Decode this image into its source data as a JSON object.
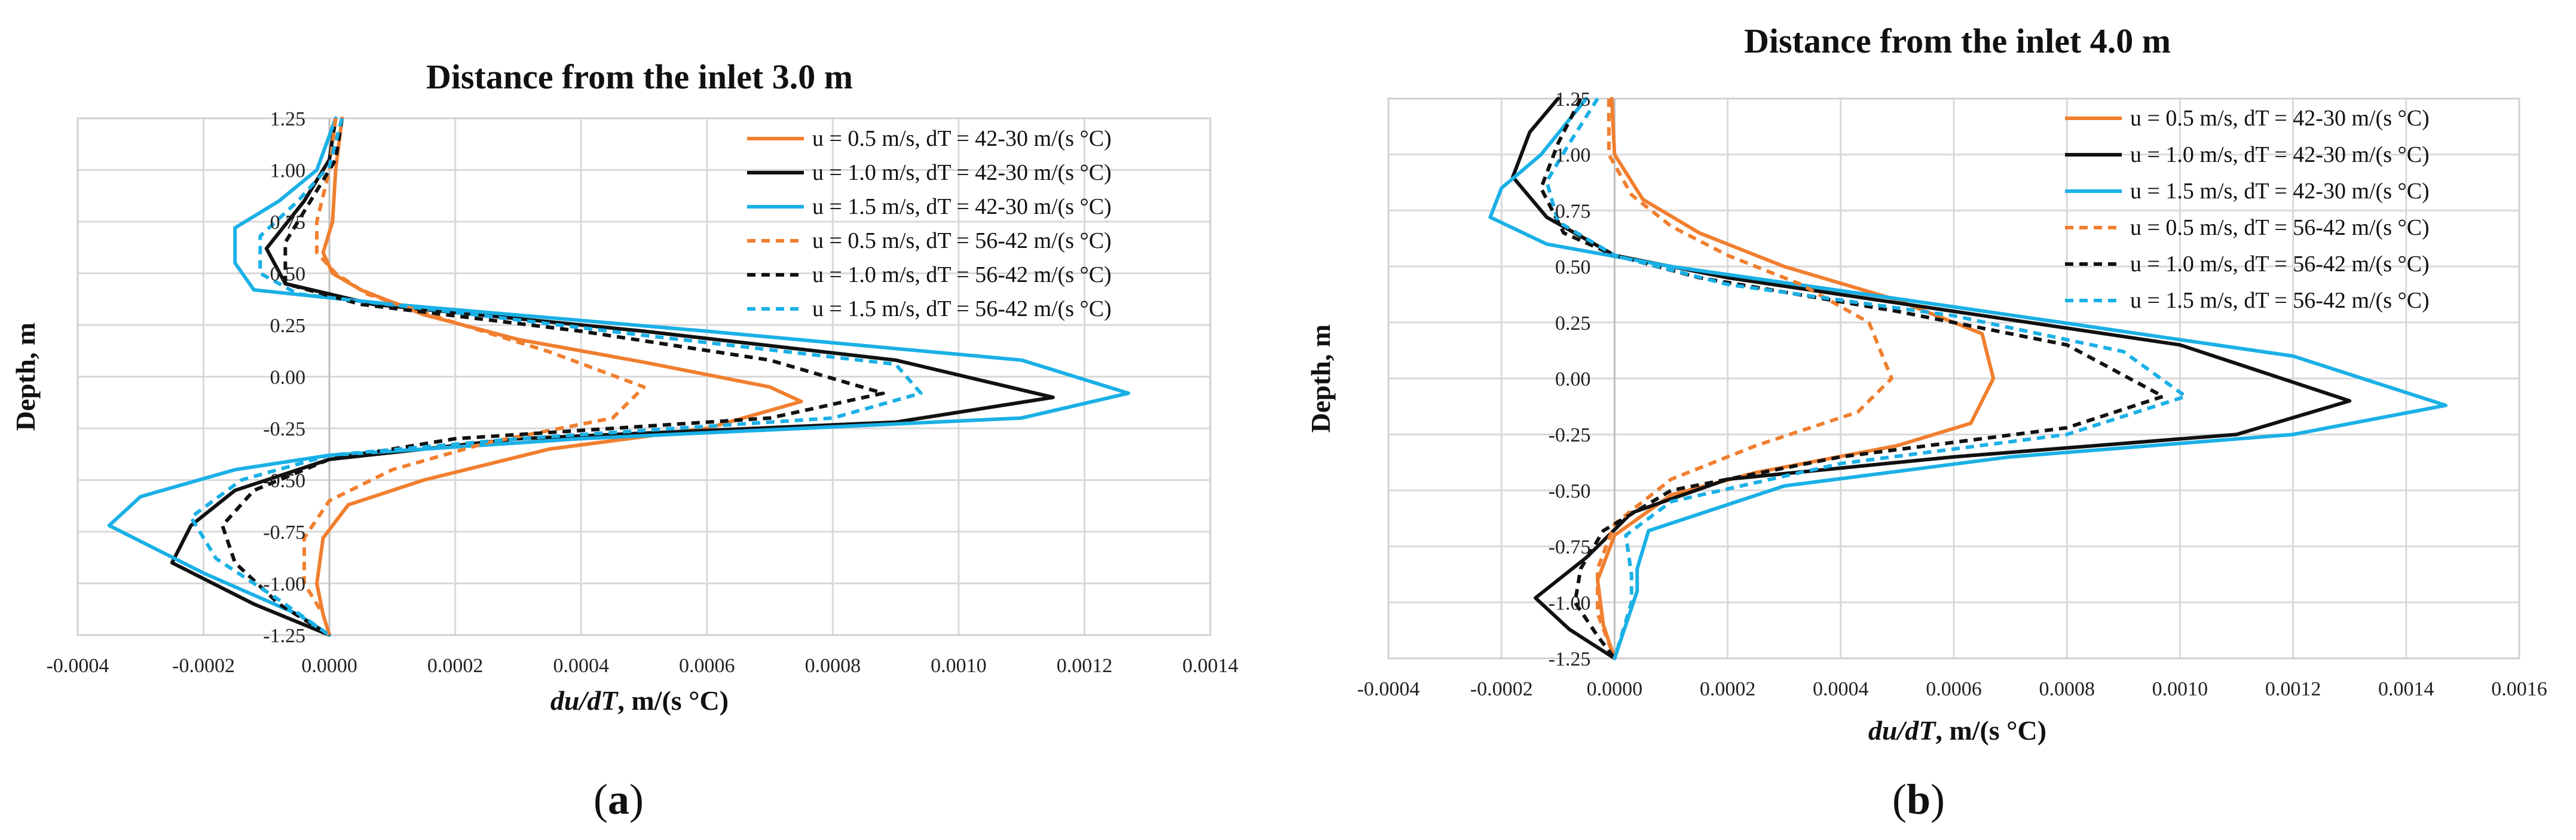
{
  "charts": [
    {
      "id": "a",
      "type": "line",
      "panel_label": "(a)",
      "title": "Distance from the inlet 3.0 m",
      "xlabel_italic": "du/dT",
      "xlabel_rest": ", m/(s °C)",
      "ylabel": "Depth, m",
      "xlim": [
        -0.0004,
        0.0014
      ],
      "ylim": [
        -1.25,
        1.25
      ],
      "x_ticks": [
        "-0.0004",
        "-0.0002",
        "0.0000",
        "0.0002",
        "0.0004",
        "0.0006",
        "0.0008",
        "0.0010",
        "0.0012",
        "0.0014"
      ],
      "y_ticks": [
        "1.25",
        "1.00",
        "0.75",
        "0.50",
        "0.25",
        "0.00",
        "-0.25",
        "-0.50",
        "-0.75",
        "-1.00",
        "-1.25"
      ],
      "legend": "top-right",
      "series": [
        {
          "name": "u = 0.5 m/s, dT = 42-30 m/(s °C)",
          "color": "#f07f2f",
          "dash": false,
          "points": [
            [
              2e-05,
              1.25
            ],
            [
              1e-05,
              1.0
            ],
            [
              5e-06,
              0.75
            ],
            [
              -1e-05,
              0.6
            ],
            [
              5e-06,
              0.5
            ],
            [
              5e-05,
              0.42
            ],
            [
              0.00015,
              0.3
            ],
            [
              0.0003,
              0.18
            ],
            [
              0.0005,
              0.07
            ],
            [
              0.0007,
              -0.05
            ],
            [
              0.00075,
              -0.12
            ],
            [
              0.0006,
              -0.25
            ],
            [
              0.00035,
              -0.35
            ],
            [
              0.00015,
              -0.5
            ],
            [
              3e-05,
              -0.62
            ],
            [
              -1e-05,
              -0.78
            ],
            [
              -2e-05,
              -1.0
            ],
            [
              -1e-05,
              -1.15
            ],
            [
              0.0,
              -1.25
            ]
          ]
        },
        {
          "name": "u = 1.0 m/s, dT = 42-30 m/(s °C)",
          "color": "#111111",
          "dash": false,
          "points": [
            [
              1e-05,
              1.25
            ],
            [
              0.0,
              1.05
            ],
            [
              -4e-05,
              0.85
            ],
            [
              -0.0001,
              0.62
            ],
            [
              -7e-05,
              0.45
            ],
            [
              7e-05,
              0.35
            ],
            [
              0.0005,
              0.22
            ],
            [
              0.0009,
              0.08
            ],
            [
              0.00115,
              -0.1
            ],
            [
              0.0009,
              -0.22
            ],
            [
              0.0003,
              -0.3
            ],
            [
              0.0,
              -0.4
            ],
            [
              -0.00015,
              -0.55
            ],
            [
              -0.00022,
              -0.72
            ],
            [
              -0.00025,
              -0.9
            ],
            [
              -0.00012,
              -1.1
            ],
            [
              0.0,
              -1.25
            ]
          ]
        },
        {
          "name": "u = 1.5 m/s, dT = 42-30 m/(s °C)",
          "color": "#1ab0e6",
          "dash": false,
          "points": [
            [
              1e-05,
              1.25
            ],
            [
              -2e-05,
              1.0
            ],
            [
              -8e-05,
              0.85
            ],
            [
              -0.00015,
              0.72
            ],
            [
              -0.00015,
              0.55
            ],
            [
              -0.00012,
              0.42
            ],
            [
              0.0001,
              0.35
            ],
            [
              0.0006,
              0.22
            ],
            [
              0.0011,
              0.08
            ],
            [
              0.00127,
              -0.08
            ],
            [
              0.0011,
              -0.2
            ],
            [
              0.0004,
              -0.3
            ],
            [
              0.0,
              -0.38
            ],
            [
              -0.00015,
              -0.45
            ],
            [
              -0.0003,
              -0.58
            ],
            [
              -0.00035,
              -0.72
            ],
            [
              -0.0002,
              -0.95
            ],
            [
              -5e-05,
              -1.15
            ],
            [
              0.0,
              -1.25
            ]
          ]
        },
        {
          "name": "u = 0.5 m/s, dT = 56-42 m/(s °C)",
          "color": "#f07f2f",
          "dash": true,
          "points": [
            [
              1e-05,
              1.25
            ],
            [
              0.0,
              1.0
            ],
            [
              -2e-05,
              0.75
            ],
            [
              -2e-05,
              0.6
            ],
            [
              1e-05,
              0.5
            ],
            [
              6e-05,
              0.4
            ],
            [
              0.00018,
              0.28
            ],
            [
              0.00035,
              0.12
            ],
            [
              0.0005,
              -0.05
            ],
            [
              0.00045,
              -0.2
            ],
            [
              0.00025,
              -0.32
            ],
            [
              0.0001,
              -0.45
            ],
            [
              0.0,
              -0.6
            ],
            [
              -4e-05,
              -0.78
            ],
            [
              -4e-05,
              -1.0
            ],
            [
              -1e-05,
              -1.15
            ],
            [
              0.0,
              -1.25
            ]
          ]
        },
        {
          "name": "u = 1.0 m/s, dT = 56-42 m/(s °C)",
          "color": "#111111",
          "dash": true,
          "points": [
            [
              2e-05,
              1.25
            ],
            [
              1e-05,
              1.05
            ],
            [
              -3e-05,
              0.85
            ],
            [
              -7e-05,
              0.65
            ],
            [
              -7e-05,
              0.45
            ],
            [
              5e-05,
              0.35
            ],
            [
              0.0004,
              0.22
            ],
            [
              0.0007,
              0.08
            ],
            [
              0.00088,
              -0.08
            ],
            [
              0.0007,
              -0.2
            ],
            [
              0.0002,
              -0.3
            ],
            [
              0.0,
              -0.4
            ],
            [
              -0.00012,
              -0.55
            ],
            [
              -0.00017,
              -0.72
            ],
            [
              -0.00015,
              -0.9
            ],
            [
              -8e-05,
              -1.1
            ],
            [
              0.0,
              -1.25
            ]
          ]
        },
        {
          "name": "u = 1.5 m/s, dT = 56-42 m/(s °C)",
          "color": "#1ab0e6",
          "dash": true,
          "points": [
            [
              2e-05,
              1.25
            ],
            [
              0.0,
              1.02
            ],
            [
              -5e-05,
              0.85
            ],
            [
              -0.00011,
              0.68
            ],
            [
              -0.00011,
              0.5
            ],
            [
              -5e-05,
              0.4
            ],
            [
              0.00015,
              0.33
            ],
            [
              0.0005,
              0.2
            ],
            [
              0.0009,
              0.06
            ],
            [
              0.00094,
              -0.08
            ],
            [
              0.0008,
              -0.2
            ],
            [
              0.0003,
              -0.3
            ],
            [
              0.0,
              -0.38
            ],
            [
              -0.00014,
              -0.5
            ],
            [
              -0.00022,
              -0.68
            ],
            [
              -0.00018,
              -0.88
            ],
            [
              -8e-05,
              -1.08
            ],
            [
              0.0,
              -1.25
            ]
          ]
        }
      ]
    },
    {
      "id": "b",
      "type": "line",
      "panel_label": "(b)",
      "title": "Distance from the inlet 4.0 m",
      "xlabel_italic": "du/dT",
      "xlabel_rest": ", m/(s °C)",
      "ylabel": "Depth, m",
      "xlim": [
        -0.0004,
        0.0016
      ],
      "ylim": [
        -1.25,
        1.25
      ],
      "x_ticks": [
        "-0.0004",
        "-0.0002",
        "0.0000",
        "0.0002",
        "0.0004",
        "0.0006",
        "0.0008",
        "0.0010",
        "0.0012",
        "0.0014",
        "0.0016"
      ],
      "y_ticks": [
        "1.25",
        "1.00",
        "0.75",
        "0.50",
        "0.25",
        "0.00",
        "-0.25",
        "-0.50",
        "-0.75",
        "-1.00",
        "-1.25"
      ],
      "legend": "top-right",
      "series": [
        {
          "name": "u = 0.5 m/s, dT = 42-30 m/(s °C)",
          "color": "#f07f2f",
          "dash": false,
          "points": [
            [
              -5e-06,
              1.25
            ],
            [
              0.0,
              1.0
            ],
            [
              5e-05,
              0.8
            ],
            [
              0.00015,
              0.65
            ],
            [
              0.0003,
              0.5
            ],
            [
              0.0005,
              0.35
            ],
            [
              0.00065,
              0.2
            ],
            [
              0.00067,
              0.0
            ],
            [
              0.00063,
              -0.2
            ],
            [
              0.0005,
              -0.3
            ],
            [
              0.00025,
              -0.42
            ],
            [
              0.0001,
              -0.52
            ],
            [
              0.0,
              -0.7
            ],
            [
              -3e-05,
              -0.9
            ],
            [
              -2e-05,
              -1.1
            ],
            [
              0.0,
              -1.25
            ]
          ]
        },
        {
          "name": "u = 1.0 m/s, dT = 42-30 m/(s °C)",
          "color": "#111111",
          "dash": false,
          "points": [
            [
              -0.0001,
              1.25
            ],
            [
              -0.00015,
              1.1
            ],
            [
              -0.00018,
              0.9
            ],
            [
              -0.00012,
              0.72
            ],
            [
              0.0,
              0.55
            ],
            [
              0.0002,
              0.45
            ],
            [
              0.0006,
              0.3
            ],
            [
              0.001,
              0.15
            ],
            [
              0.0013,
              -0.1
            ],
            [
              0.0011,
              -0.25
            ],
            [
              0.0006,
              -0.35
            ],
            [
              0.0002,
              -0.45
            ],
            [
              3e-05,
              -0.6
            ],
            [
              -5e-05,
              -0.8
            ],
            [
              -0.00014,
              -0.98
            ],
            [
              -8e-05,
              -1.12
            ],
            [
              0.0,
              -1.25
            ]
          ]
        },
        {
          "name": "u = 1.5 m/s, dT = 42-30 m/(s °C)",
          "color": "#1ab0e6",
          "dash": false,
          "points": [
            [
              -5e-05,
              1.25
            ],
            [
              -0.00013,
              1.0
            ],
            [
              -0.0002,
              0.85
            ],
            [
              -0.00022,
              0.72
            ],
            [
              -0.00012,
              0.6
            ],
            [
              0.0001,
              0.5
            ],
            [
              0.0006,
              0.32
            ],
            [
              0.0012,
              0.1
            ],
            [
              0.00147,
              -0.12
            ],
            [
              0.0012,
              -0.25
            ],
            [
              0.0007,
              -0.35
            ],
            [
              0.0003,
              -0.48
            ],
            [
              6e-05,
              -0.68
            ],
            [
              4e-05,
              -0.85
            ],
            [
              4e-05,
              -0.95
            ],
            [
              0.0,
              -1.25
            ]
          ]
        },
        {
          "name": "u = 0.5 m/s, dT = 56-42 m/(s °C)",
          "color": "#f07f2f",
          "dash": true,
          "points": [
            [
              -1e-05,
              1.25
            ],
            [
              -1e-05,
              1.0
            ],
            [
              3e-05,
              0.82
            ],
            [
              0.0001,
              0.68
            ],
            [
              0.0002,
              0.55
            ],
            [
              0.00033,
              0.42
            ],
            [
              0.00045,
              0.25
            ],
            [
              0.00049,
              0.0
            ],
            [
              0.00043,
              -0.15
            ],
            [
              0.00025,
              -0.3
            ],
            [
              0.0001,
              -0.45
            ],
            [
              0.0,
              -0.65
            ],
            [
              -3e-05,
              -0.85
            ],
            [
              -3e-05,
              -1.05
            ],
            [
              0.0,
              -1.25
            ]
          ]
        },
        {
          "name": "u = 1.0 m/s, dT = 56-42 m/(s °C)",
          "color": "#111111",
          "dash": true,
          "points": [
            [
              -6e-05,
              1.25
            ],
            [
              -0.0001,
              1.05
            ],
            [
              -0.00013,
              0.85
            ],
            [
              -9e-05,
              0.65
            ],
            [
              0.0,
              0.55
            ],
            [
              0.00015,
              0.45
            ],
            [
              0.0005,
              0.3
            ],
            [
              0.0008,
              0.15
            ],
            [
              0.00097,
              -0.08
            ],
            [
              0.0008,
              -0.22
            ],
            [
              0.0004,
              -0.35
            ],
            [
              0.0001,
              -0.5
            ],
            [
              -2e-05,
              -0.68
            ],
            [
              -6e-05,
              -0.85
            ],
            [
              -7e-05,
              -1.0
            ],
            [
              -3e-05,
              -1.15
            ],
            [
              0.0,
              -1.25
            ]
          ]
        },
        {
          "name": "u = 1.5 m/s, dT = 56-42 m/(s °C)",
          "color": "#1ab0e6",
          "dash": true,
          "points": [
            [
              -3e-05,
              1.25
            ],
            [
              -8e-05,
              1.05
            ],
            [
              -0.00012,
              0.88
            ],
            [
              -0.0001,
              0.7
            ],
            [
              0.0,
              0.55
            ],
            [
              0.0002,
              0.42
            ],
            [
              0.0006,
              0.28
            ],
            [
              0.0009,
              0.12
            ],
            [
              0.00101,
              -0.08
            ],
            [
              0.0008,
              -0.25
            ],
            [
              0.0004,
              -0.38
            ],
            [
              0.0001,
              -0.55
            ],
            [
              2e-05,
              -0.7
            ],
            [
              3e-05,
              -0.88
            ],
            [
              3e-05,
              -1.0
            ],
            [
              0.0,
              -1.25
            ]
          ]
        }
      ]
    }
  ]
}
